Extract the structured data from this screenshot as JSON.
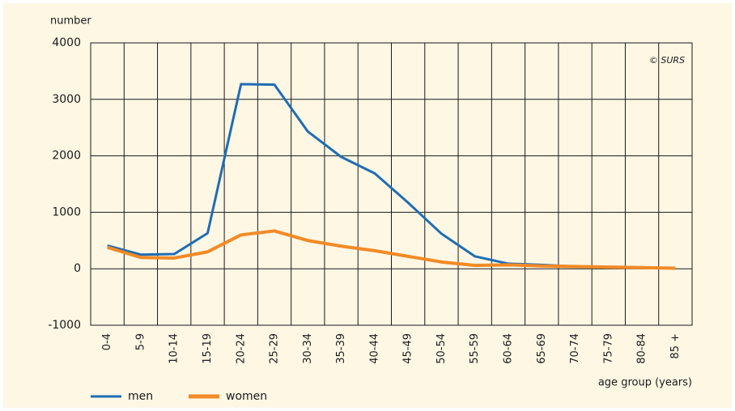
{
  "chart_data": {
    "type": "line",
    "y_axis_label": "number",
    "x_axis_label": "age group (years)",
    "annotation": "© SURS",
    "categories": [
      "0-4",
      "5-9",
      "10-14",
      "15-19",
      "20-24",
      "25-29",
      "30-34",
      "35-39",
      "40-44",
      "45-49",
      "50-54",
      "55-59",
      "60-64",
      "65-69",
      "70-74",
      "75-79",
      "80-84",
      "85 +"
    ],
    "series": [
      {
        "name": "men",
        "color": "#1f6db5",
        "values": [
          410,
          250,
          260,
          630,
          3270,
          3260,
          2430,
          1980,
          1690,
          1170,
          620,
          220,
          90,
          70,
          40,
          30,
          20,
          10
        ]
      },
      {
        "name": "women",
        "color": "#f28a26",
        "values": [
          380,
          200,
          190,
          300,
          600,
          670,
          500,
          400,
          320,
          220,
          120,
          60,
          70,
          50,
          40,
          30,
          20,
          10
        ]
      }
    ],
    "ylim": [
      -1000,
      4000
    ],
    "yticks": [
      -1000,
      0,
      1000,
      2000,
      3000,
      4000
    ],
    "grid": true
  }
}
